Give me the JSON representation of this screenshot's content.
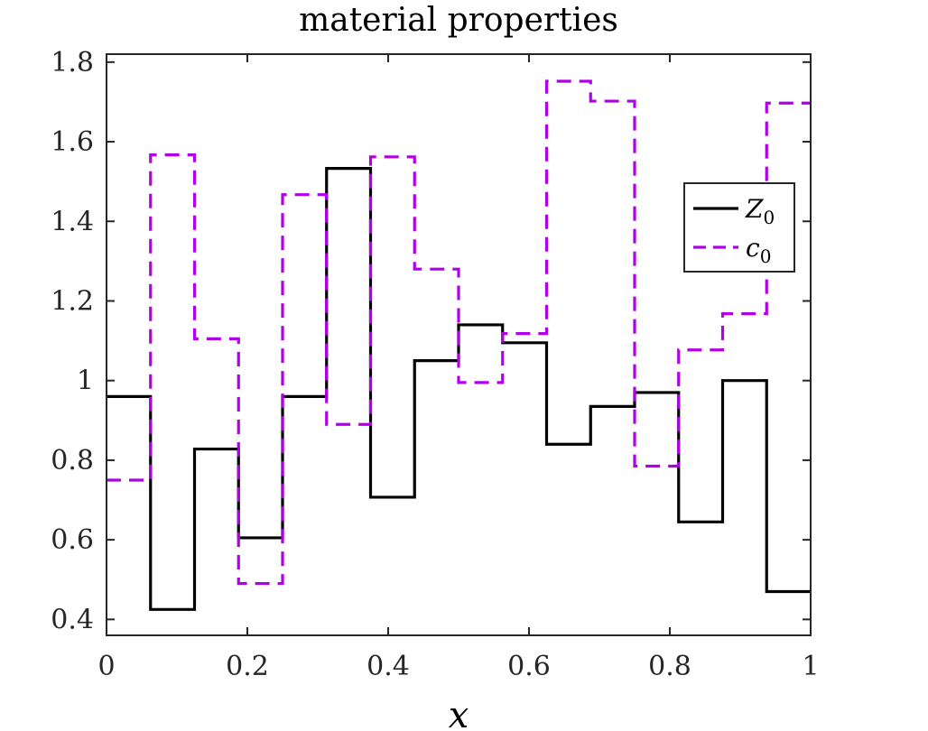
{
  "chart_data": {
    "type": "line",
    "title": "material properties",
    "xlabel": "x",
    "ylabel": "",
    "xlim": [
      0,
      1
    ],
    "ylim": [
      0.36,
      1.82
    ],
    "xticks": [
      0,
      0.2,
      0.4,
      0.6,
      0.8,
      1
    ],
    "xtick_labels": [
      "0",
      "0.2",
      "0.4",
      "0.6",
      "0.8",
      "1"
    ],
    "yticks": [
      0.4,
      0.6,
      0.8,
      1.0,
      1.2,
      1.4,
      1.6,
      1.8
    ],
    "ytick_labels": [
      "0.4",
      "0.6",
      "0.8",
      "1",
      "1.2",
      "1.4",
      "1.6",
      "1.8"
    ],
    "grid": false,
    "legend_position": "right",
    "bin_edges": [
      0,
      0.0625,
      0.125,
      0.1875,
      0.25,
      0.3125,
      0.375,
      0.4375,
      0.5,
      0.5625,
      0.625,
      0.6875,
      0.75,
      0.8125,
      0.875,
      0.9375,
      1.0
    ],
    "series": [
      {
        "name": "Z",
        "subscript": "0",
        "style": "solid",
        "color": "#000000",
        "values": [
          0.96,
          0.425,
          0.828,
          0.605,
          0.96,
          1.533,
          0.707,
          1.05,
          1.14,
          1.095,
          0.84,
          0.935,
          0.97,
          0.645,
          1.0,
          0.47
        ]
      },
      {
        "name": "c",
        "subscript": "0",
        "style": "dashed",
        "color": "#b000e8",
        "values": [
          0.75,
          1.567,
          1.105,
          0.49,
          1.467,
          0.89,
          1.562,
          1.28,
          0.995,
          1.118,
          1.752,
          1.702,
          0.785,
          1.077,
          1.168,
          1.697
        ]
      }
    ]
  }
}
